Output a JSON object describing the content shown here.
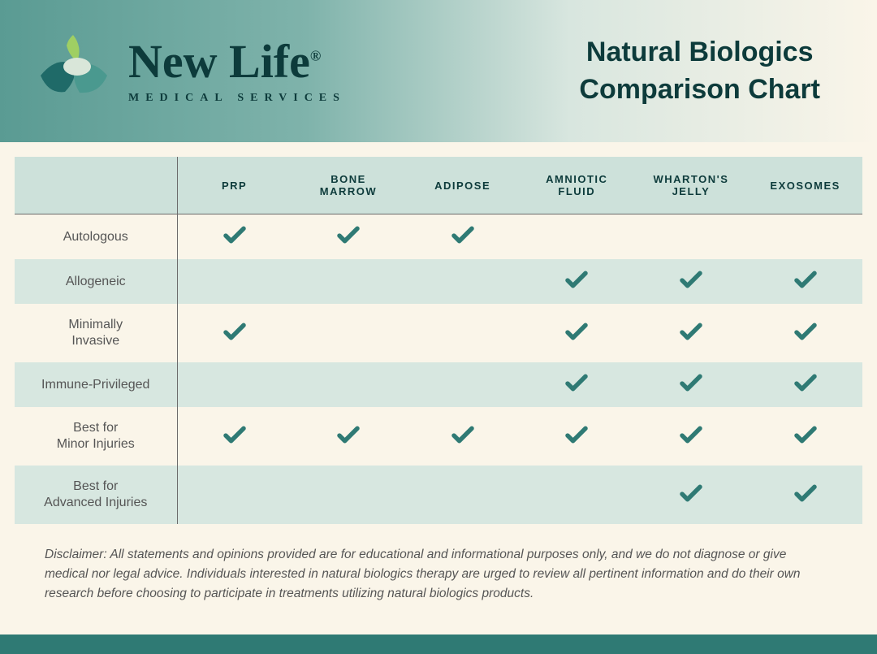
{
  "colors": {
    "check": "#2f7a74",
    "header_text": "#0d3b3b",
    "row_alt_bg": "#d7e7e0",
    "th_bg": "#cde1da",
    "footer_bar": "#2f7a74",
    "body_bg": "#faf5e9",
    "logo_leaf": "#9fcf63",
    "logo_teal_dark": "#1f6a68",
    "logo_teal_mid": "#4a998f",
    "logo_light": "#d9e6d9"
  },
  "brand": {
    "name": "New Life",
    "registered": "®",
    "sub": "MEDICAL  SERVICES"
  },
  "title": {
    "line1": "Natural Biologics",
    "line2": "Comparison Chart"
  },
  "table": {
    "columns": [
      "PRP",
      "BONE MARROW",
      "ADIPOSE",
      "AMNIOTIC FLUID",
      "WHARTON'S JELLY",
      "EXOSOMES"
    ],
    "rows": [
      {
        "label": "Autologous",
        "checks": [
          true,
          true,
          true,
          false,
          false,
          false
        ]
      },
      {
        "label": "Allogeneic",
        "checks": [
          false,
          false,
          false,
          true,
          true,
          true
        ]
      },
      {
        "label": "Minimally Invasive",
        "checks": [
          true,
          false,
          false,
          true,
          true,
          true
        ]
      },
      {
        "label": "Immune-Privileged",
        "checks": [
          false,
          false,
          false,
          true,
          true,
          true
        ]
      },
      {
        "label": "Best for Minor Injuries",
        "checks": [
          true,
          true,
          true,
          true,
          true,
          true
        ]
      },
      {
        "label": "Best for Advanced Injuries",
        "checks": [
          false,
          false,
          false,
          false,
          true,
          true
        ]
      }
    ]
  },
  "disclaimer": "Disclaimer: All statements and opinions provided are for educational and informational purposes only, and we do not diagnose or give medical nor legal advice. Individuals interested in natural biologics therapy are urged to review all pertinent information and do their own research before choosing to participate in treatments utilizing natural biologics products."
}
